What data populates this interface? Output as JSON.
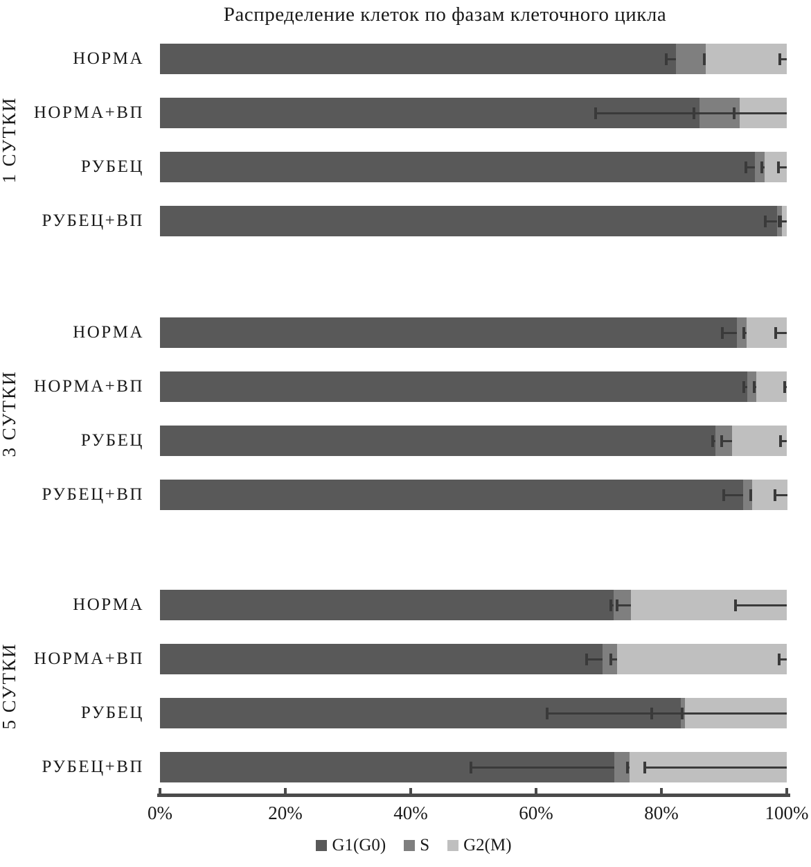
{
  "title": "Распределение клеток по фазам клеточного цикла",
  "chart_data": {
    "type": "bar",
    "orientation": "horizontal",
    "stacked": true,
    "stacked_total_percent": 100,
    "title": "Распределение клеток по фазам клеточного цикла",
    "series": [
      {
        "name": "G1(G0)",
        "color": "#595959"
      },
      {
        "name": "S",
        "color": "#7f7f7f"
      },
      {
        "name": "G2(M)",
        "color": "#bfbfbf"
      }
    ],
    "error_bars": {
      "direction": "minus",
      "color": "#3a3a3a"
    },
    "x_axis": {
      "min": 0,
      "max": 100,
      "tick_step": 20,
      "tick_labels": [
        "0%",
        "20%",
        "40%",
        "60%",
        "80%",
        "100%"
      ]
    },
    "groups": [
      {
        "label": "1 СУТКИ",
        "rows": [
          {
            "label": "НОРМА",
            "values": [
              82.3,
              4.8,
              12.9
            ],
            "errors_minus": [
              1.5,
              0.3,
              1.1
            ]
          },
          {
            "label": "НОРМА+ВП",
            "values": [
              86.1,
              6.4,
              7.5
            ],
            "errors_minus": [
              16.6,
              7.3,
              8.4
            ]
          },
          {
            "label": "РУБЕЦ",
            "values": [
              94.9,
              1.6,
              3.5
            ],
            "errors_minus": [
              1.4,
              0.5,
              1.3
            ]
          },
          {
            "label": "РУБЕЦ+ВП",
            "values": [
              98.4,
              0.8,
              0.8
            ],
            "errors_minus": [
              1.8,
              0.4,
              1.0
            ]
          }
        ]
      },
      {
        "label": "3 СУТКИ",
        "rows": [
          {
            "label": "НОРМА",
            "values": [
              92.0,
              1.6,
              6.4
            ],
            "errors_minus": [
              2.3,
              0.4,
              1.8
            ]
          },
          {
            "label": "НОРМА+ВП",
            "values": [
              93.7,
              1.4,
              4.9
            ],
            "errors_minus": [
              0.6,
              0.3,
              0.3
            ]
          },
          {
            "label": "РУБЕЦ",
            "values": [
              88.6,
              2.7,
              8.7
            ],
            "errors_minus": [
              0.4,
              1.7,
              1.0
            ]
          },
          {
            "label": "РУБЕЦ+ВП",
            "values": [
              93.0,
              1.5,
              5.6
            ],
            "errors_minus": [
              3.1,
              0.3,
              2.0
            ]
          }
        ]
      },
      {
        "label": "5 СУТКИ",
        "rows": [
          {
            "label": "НОРМА",
            "values": [
              72.4,
              2.7,
              24.9
            ],
            "errors_minus": [
              0.5,
              2.2,
              8.2
            ]
          },
          {
            "label": "НОРМА+ВП",
            "values": [
              70.6,
              2.3,
              27.1
            ],
            "errors_minus": [
              2.5,
              1.0,
              1.2
            ]
          },
          {
            "label": "РУБЕЦ",
            "values": [
              83.1,
              0.7,
              16.2
            ],
            "errors_minus": [
              21.3,
              5.3,
              16.7
            ]
          },
          {
            "label": "РУБЕЦ+ВП",
            "values": [
              72.5,
              2.4,
              25.1
            ],
            "errors_minus": [
              22.9,
              0.3,
              22.7
            ]
          }
        ]
      }
    ],
    "legend": {
      "position": "bottom",
      "entries": [
        "G1(G0)",
        "S",
        "G2(M)"
      ]
    }
  }
}
